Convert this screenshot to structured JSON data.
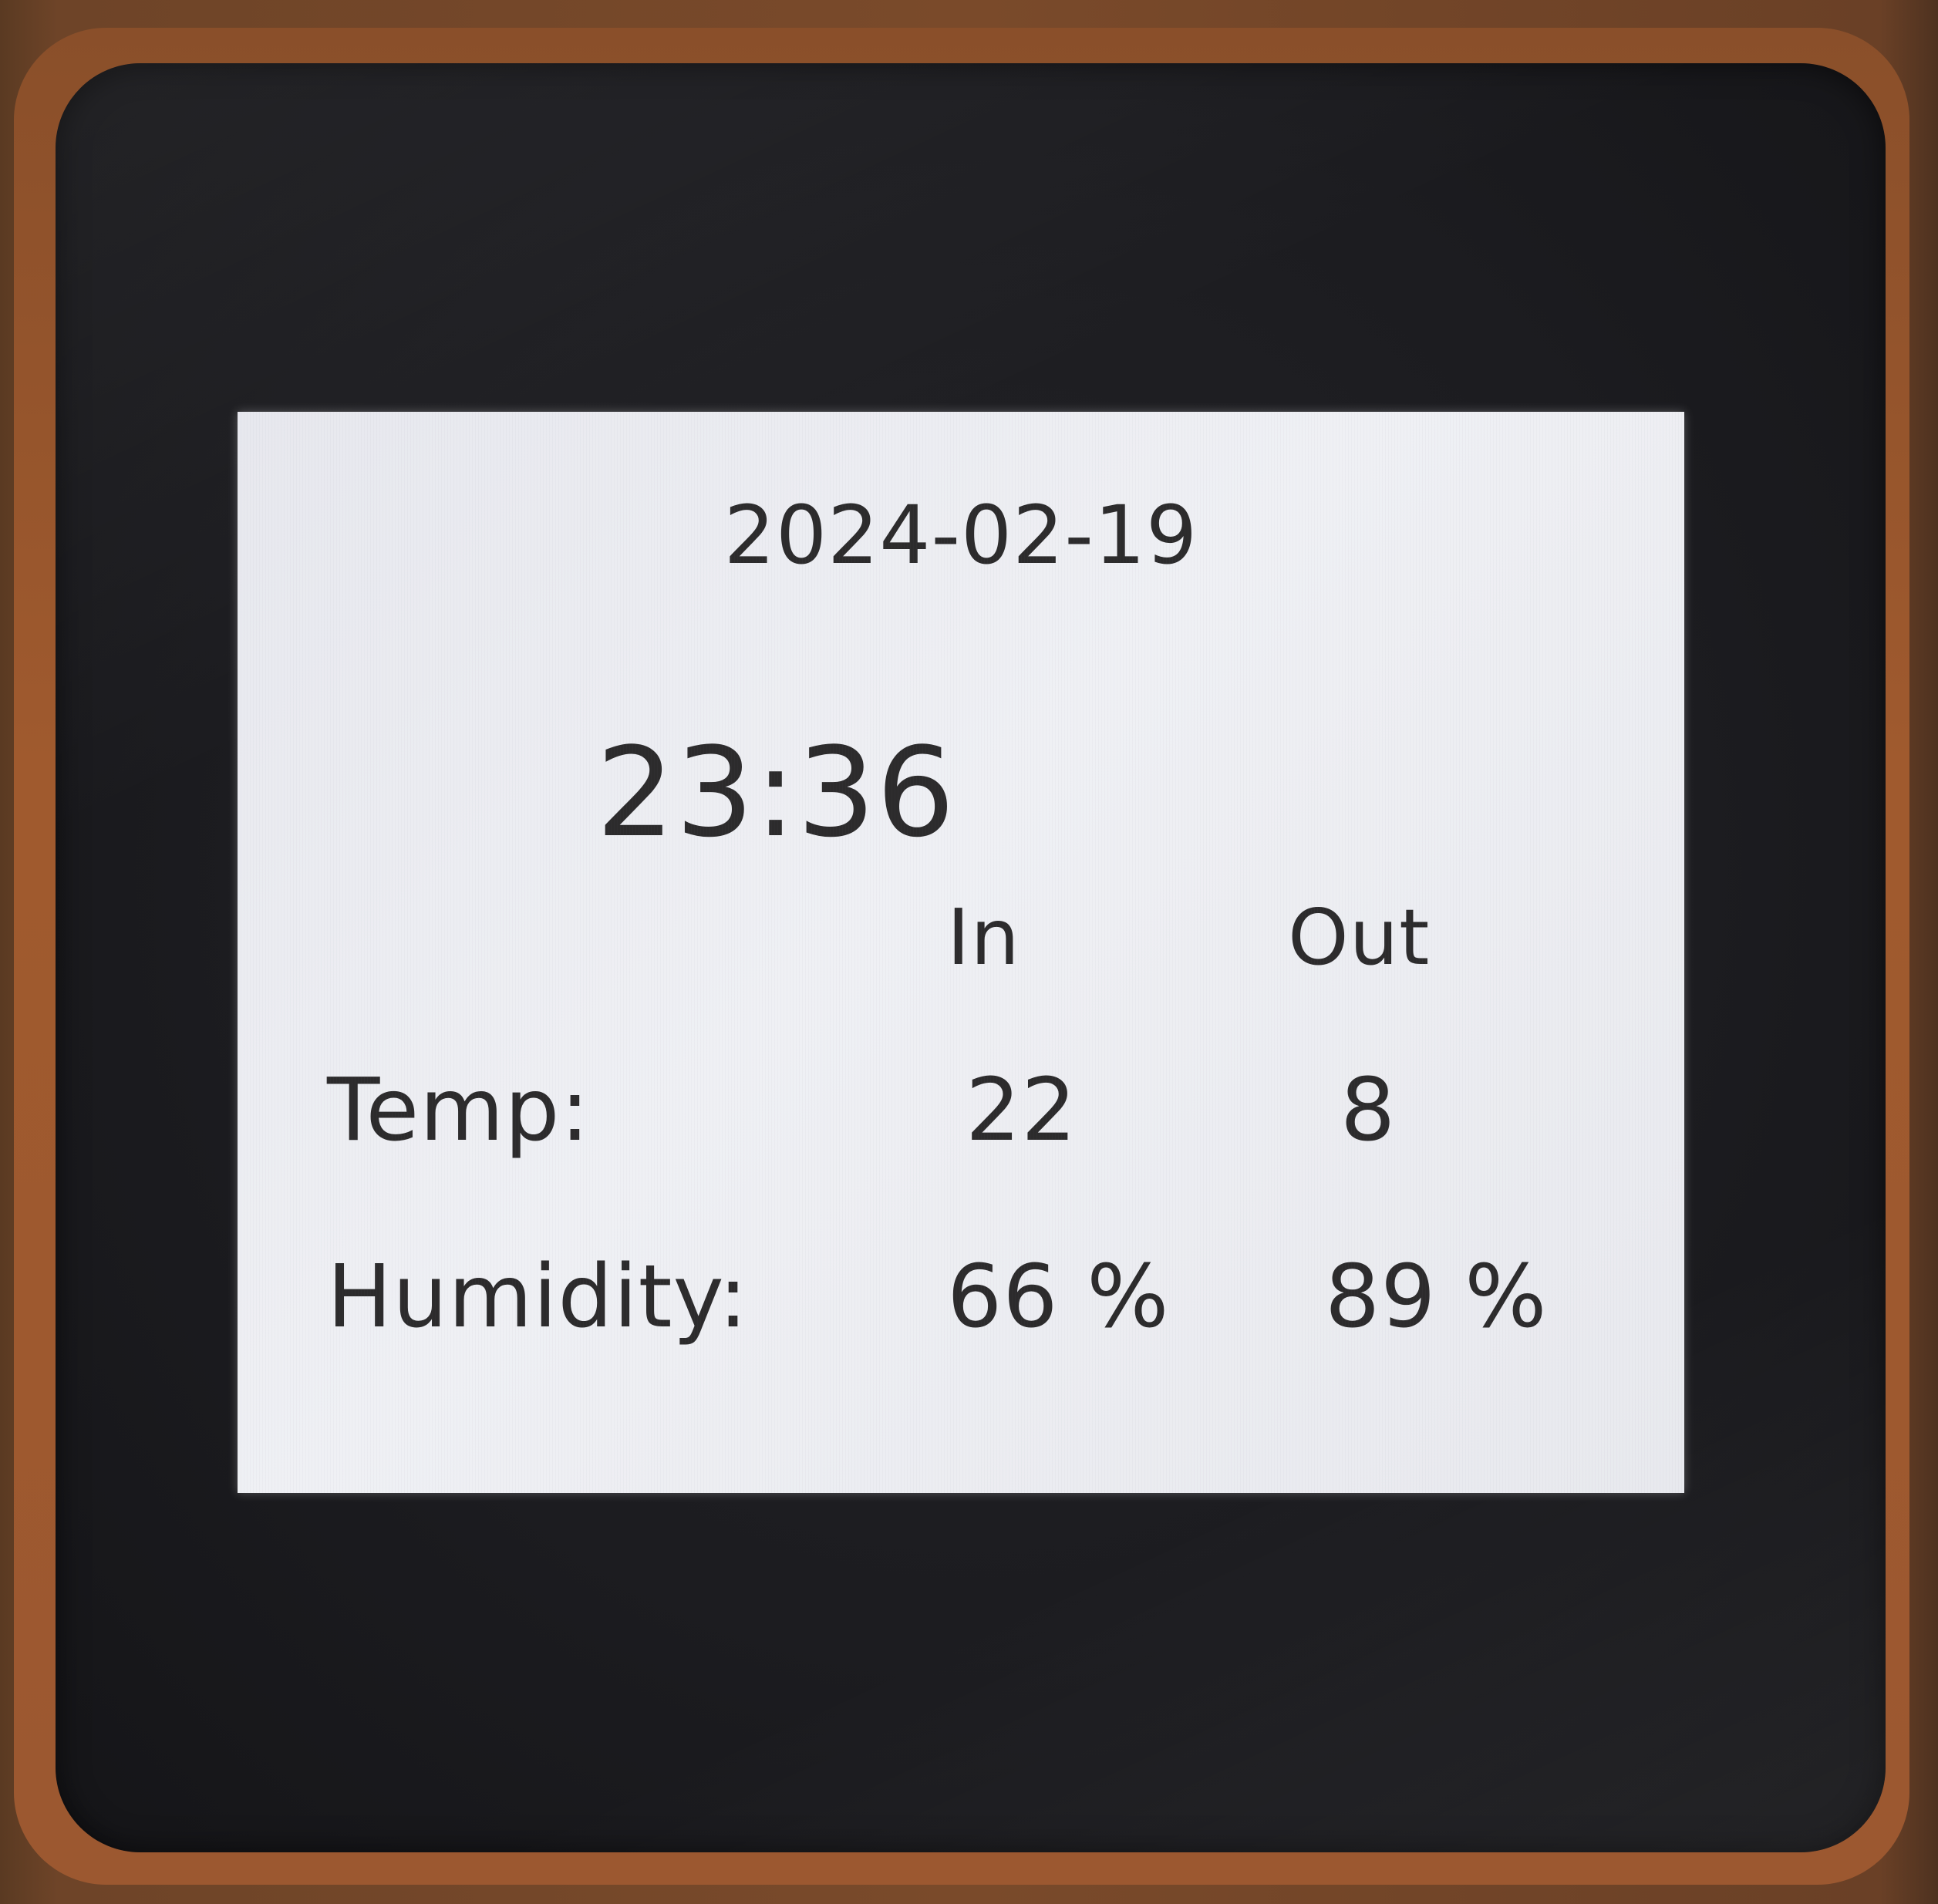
{
  "display": {
    "date": "2024-02-19",
    "time": "23:36",
    "columns": {
      "in": "In",
      "out": "Out"
    },
    "rows": {
      "temp": {
        "label": "Temp:",
        "in": "22",
        "out": "8"
      },
      "humidity": {
        "label": "Humidity:",
        "in": "66 %",
        "out": "89 %"
      }
    }
  }
}
